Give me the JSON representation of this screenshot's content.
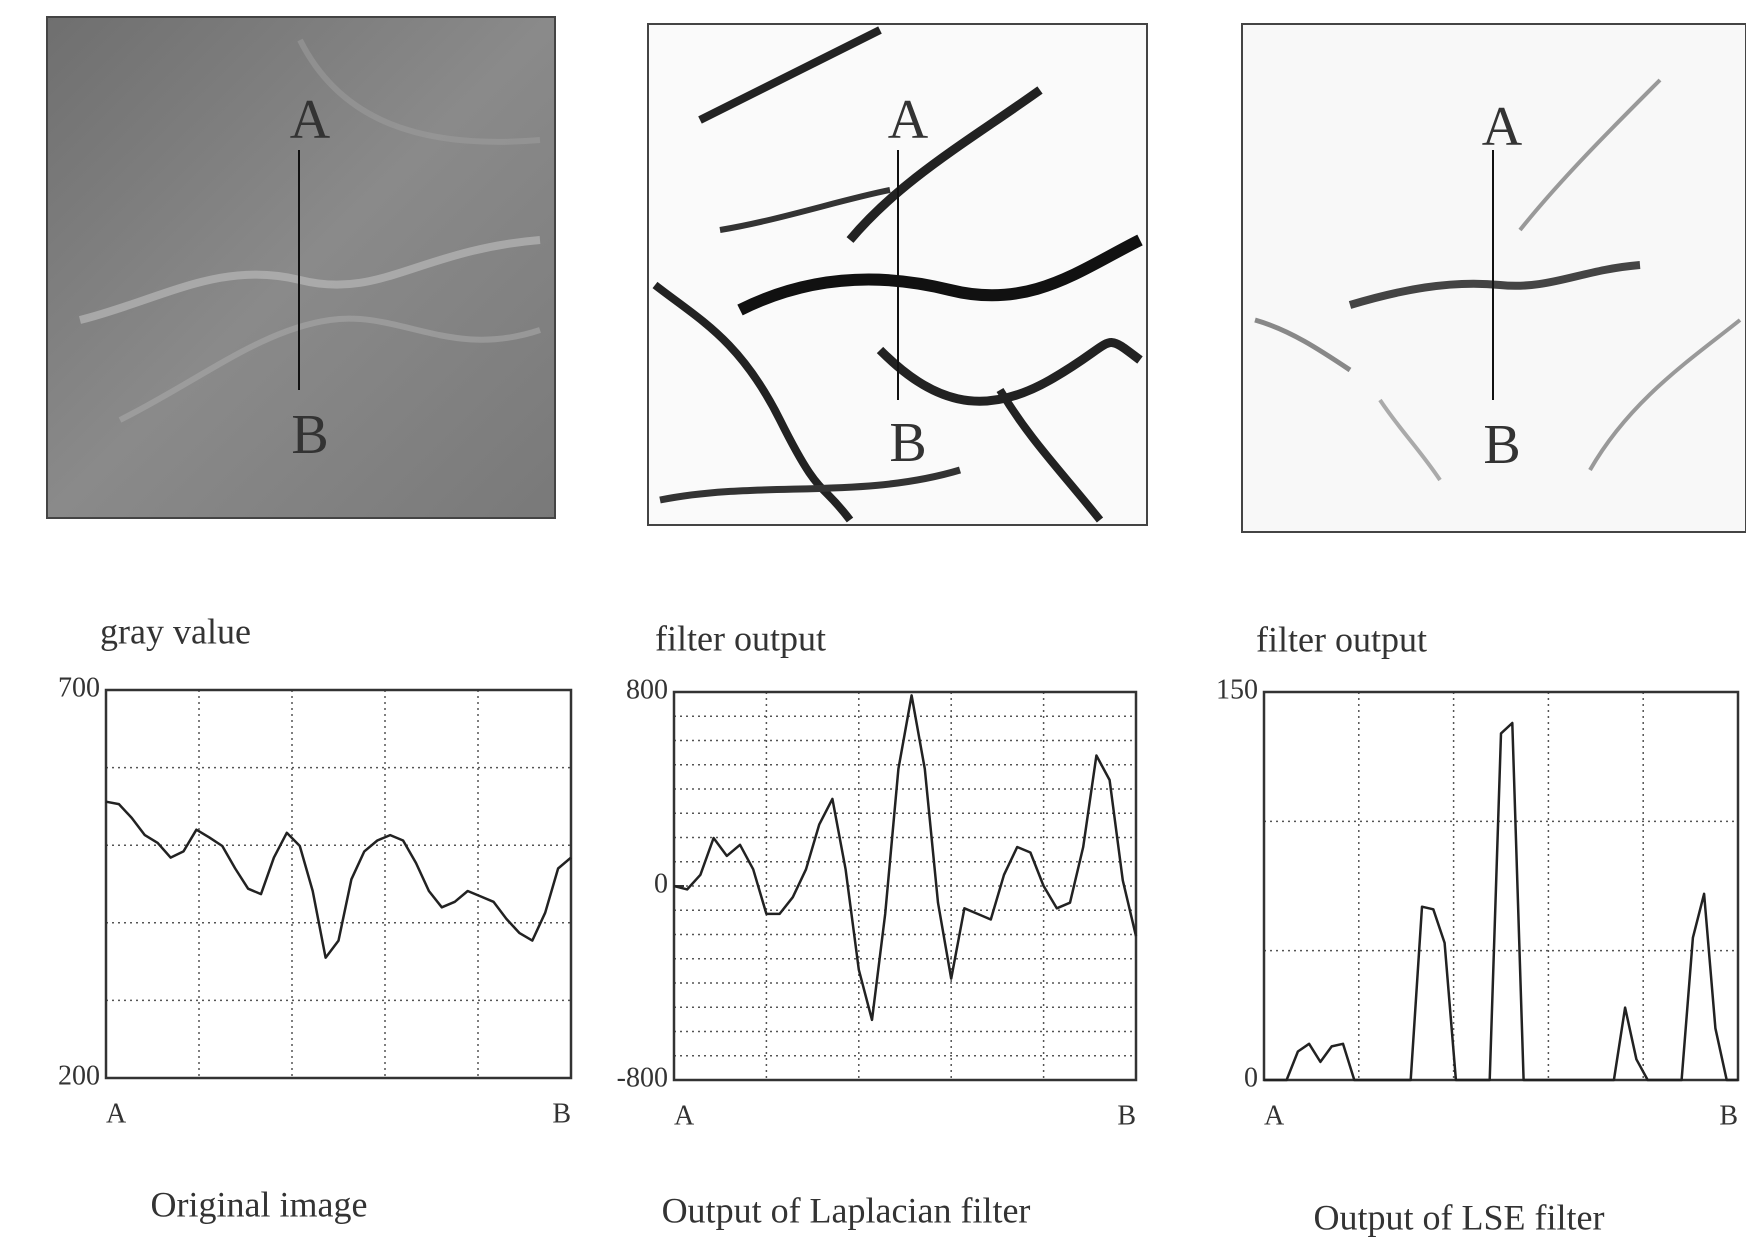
{
  "images": [
    {
      "top_label": "A",
      "bottom_label": "B"
    },
    {
      "top_label": "A",
      "bottom_label": "B"
    },
    {
      "top_label": "A",
      "bottom_label": "B"
    }
  ],
  "chart_data": [
    {
      "type": "line",
      "ylabel": "gray value",
      "caption": "Original image",
      "color": "#222222",
      "grid": true,
      "categories": [
        "A",
        null,
        null,
        null,
        null,
        null,
        null,
        null,
        null,
        null,
        null,
        null,
        null,
        null,
        null,
        null,
        null,
        null,
        null,
        null,
        null,
        null,
        null,
        null,
        null,
        null,
        null,
        null,
        null,
        null,
        null,
        null,
        null,
        null,
        null,
        null,
        "B"
      ],
      "values": [
        556,
        553,
        535,
        513,
        503,
        484,
        492,
        520,
        510,
        499,
        470,
        444,
        437,
        484,
        516,
        499,
        441,
        355,
        377,
        456,
        492,
        506,
        513,
        506,
        477,
        441,
        420,
        427,
        441,
        434,
        427,
        405,
        387,
        377,
        413,
        470,
        484
      ],
      "ylim": [
        200,
        700
      ],
      "yticks": [
        200,
        700
      ]
    },
    {
      "type": "line",
      "ylabel": "filter output",
      "caption": "Output of Laplacian filter",
      "color": "#222222",
      "grid": true,
      "categories": [
        "A",
        null,
        null,
        null,
        null,
        null,
        null,
        null,
        null,
        null,
        null,
        null,
        null,
        null,
        null,
        null,
        null,
        null,
        null,
        null,
        null,
        null,
        null,
        null,
        null,
        null,
        null,
        null,
        null,
        null,
        null,
        null,
        null,
        null,
        null,
        "B"
      ],
      "values": [
        0,
        -14,
        46,
        198,
        124,
        170,
        69,
        -115,
        -115,
        -46,
        69,
        253,
        359,
        69,
        -345,
        -552,
        -115,
        483,
        786,
        483,
        -69,
        -382,
        -92,
        -115,
        -138,
        46,
        161,
        138,
        0,
        -92,
        -69,
        161,
        538,
        437,
        23,
        -207
      ],
      "ylim": [
        -800,
        800
      ],
      "yticks": [
        -800,
        0,
        800
      ]
    },
    {
      "type": "line",
      "ylabel": "filter output",
      "caption": "Output of LSE filter",
      "color": "#222222",
      "grid": true,
      "categories": [
        "A",
        null,
        null,
        null,
        null,
        null,
        null,
        null,
        null,
        null,
        null,
        null,
        null,
        null,
        null,
        null,
        null,
        null,
        null,
        null,
        null,
        null,
        null,
        null,
        null,
        null,
        null,
        null,
        null,
        null,
        null,
        null,
        null,
        null,
        null,
        null,
        null,
        null,
        null,
        null,
        null,
        null,
        "B"
      ],
      "values": [
        0,
        0,
        0,
        11,
        14,
        7,
        13,
        14,
        0,
        0,
        0,
        0,
        0,
        0,
        67,
        66,
        53,
        0,
        0,
        0,
        0,
        134,
        138,
        0,
        0,
        0,
        0,
        0,
        0,
        0,
        0,
        0,
        28,
        8,
        0,
        0,
        0,
        0,
        55,
        72,
        20,
        0,
        0
      ],
      "ylim": [
        0,
        150
      ],
      "yticks": [
        0,
        150
      ]
    }
  ]
}
